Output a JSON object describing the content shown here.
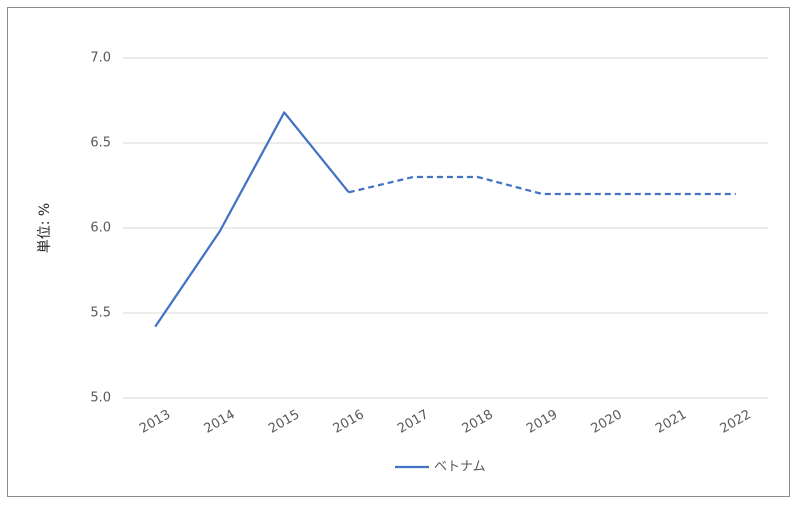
{
  "chart_data": {
    "type": "line",
    "y_label": "単位: %",
    "categories": [
      "2013",
      "2014",
      "2015",
      "2016",
      "2017",
      "2018",
      "2019",
      "2020",
      "2021",
      "2022"
    ],
    "series": [
      {
        "name": "ベトナム",
        "color": "#4472c4",
        "values": [
          5.42,
          5.98,
          6.68,
          6.21,
          6.3,
          6.3,
          6.2,
          6.2,
          6.2,
          6.2
        ]
      }
    ],
    "dashed_from": "2016",
    "ylim": [
      5,
      7
    ],
    "yticks": [
      {
        "value": 5,
        "label": "5.0"
      },
      {
        "value": 5.5,
        "label": "5.5"
      },
      {
        "value": 6,
        "label": "6.0"
      },
      {
        "value": 6.5,
        "label": "6.5"
      },
      {
        "value": 7,
        "label": "7.0"
      }
    ],
    "grid": true,
    "legend": "bottom"
  }
}
